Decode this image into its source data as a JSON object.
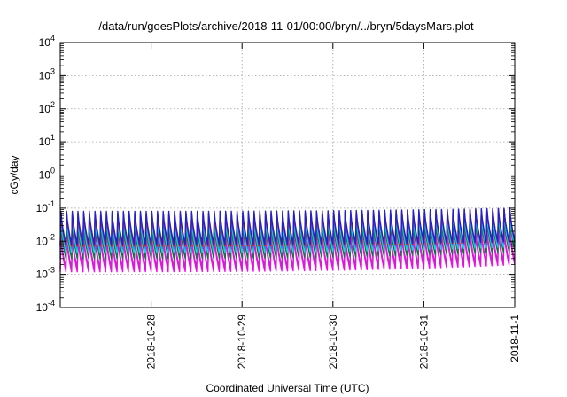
{
  "chart_data": {
    "type": "line",
    "title": "/data/run/goesPlots/archive/2018-11-01/00:00/bryn/../bryn/5daysMars.plot",
    "xlabel": "Coordinated Universal Time (UTC)",
    "ylabel": "cGy/day",
    "y_scale": "log",
    "ylim": [
      0.0001,
      10000
    ],
    "xlim": [
      "2018-10-27T00:00",
      "2018-11-01T00:00"
    ],
    "grid": true,
    "legend": "none",
    "y_ticks": [
      {
        "value": 10000,
        "base": "10",
        "exp": "4"
      },
      {
        "value": 1000,
        "base": "10",
        "exp": "3"
      },
      {
        "value": 100,
        "base": "10",
        "exp": "2"
      },
      {
        "value": 10,
        "base": "10",
        "exp": "1"
      },
      {
        "value": 1,
        "base": "10",
        "exp": "0"
      },
      {
        "value": 0.1,
        "base": "10",
        "exp": "-1"
      },
      {
        "value": 0.01,
        "base": "10",
        "exp": "-2"
      },
      {
        "value": 0.001,
        "base": "10",
        "exp": "-3"
      },
      {
        "value": 0.0001,
        "base": "10",
        "exp": "-4"
      }
    ],
    "x_ticks": [
      {
        "value": "2018-10-28T00:00",
        "label": "2018-10-28"
      },
      {
        "value": "2018-10-29T00:00",
        "label": "2018-10-29"
      },
      {
        "value": "2018-10-30T00:00",
        "label": "2018-10-30"
      },
      {
        "value": "2018-10-31T00:00",
        "label": "2018-10-31"
      },
      {
        "value": "2018-11-01T00:00",
        "label": "2018-11-1"
      }
    ],
    "sawtooth_period_hours": 1.5,
    "series": [
      {
        "color": "#ff00ff",
        "peak": 0.012,
        "trough": 0.0012,
        "peak_end": 0.02
      },
      {
        "color": "#cc22cc",
        "peak": 0.015,
        "trough": 0.0015,
        "peak_end": 0.025
      },
      {
        "color": "#0a7a3a",
        "peak": 0.03,
        "trough": 0.003,
        "peak_end": 0.05
      },
      {
        "color": "#00e0e0",
        "peak": 0.045,
        "trough": 0.0045,
        "peak_end": 0.07
      },
      {
        "color": "#1e88ff",
        "peak": 0.06,
        "trough": 0.006,
        "peak_end": 0.09
      },
      {
        "color": "#e01010",
        "peak": 0.07,
        "trough": 0.007,
        "peak_end": 0.1
      },
      {
        "color": "#2222cc",
        "peak": 0.08,
        "trough": 0.008,
        "peak_end": 0.1
      }
    ]
  }
}
